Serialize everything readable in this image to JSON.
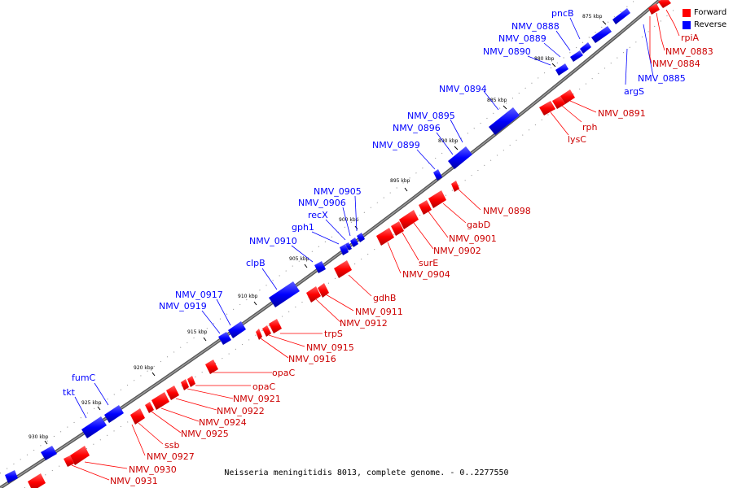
{
  "legend": {
    "forward_label": "Forward",
    "reverse_label": "Reverse",
    "forward_color": "#ff0000",
    "reverse_color": "#0000ff"
  },
  "caption": "Neisseria meningitidis 8013, complete genome. - 0..2277550",
  "kbp_ticks": [
    "875 kbp",
    "880 kbp",
    "885 kbp",
    "890 kbp",
    "895 kbp",
    "900 kbp",
    "905 kbp",
    "910 kbp",
    "915 kbp",
    "920 kbp",
    "925 kbp",
    "930 kbp"
  ],
  "reverse_labels": [
    "pncB",
    "NMV_0888",
    "NMV_0889",
    "NMV_0890",
    "NMV_0885",
    "argS",
    "NMV_0894",
    "NMV_0895",
    "NMV_0896",
    "NMV_0899",
    "NMV_0905",
    "NMV_0906",
    "recX",
    "gph1",
    "NMV_0910",
    "clpB",
    "NMV_0917",
    "NMV_0919",
    "fumC",
    "tkt"
  ],
  "forward_labels": [
    "rpiA",
    "NMV_0883",
    "NMV_0884",
    "NMV_0891",
    "rph",
    "lysC",
    "NMV_0898",
    "gabD",
    "NMV_0901",
    "NMV_0902",
    "surE",
    "NMV_0904",
    "gdhB",
    "NMV_0911",
    "NMV_0912",
    "trpS",
    "NMV_0915",
    "NMV_0916",
    "opaC",
    "opaC",
    "NMV_0921",
    "NMV_0922",
    "NMV_0924",
    "NMV_0925",
    "ssb",
    "NMV_0927",
    "NMV_0930",
    "NMV_0931"
  ]
}
